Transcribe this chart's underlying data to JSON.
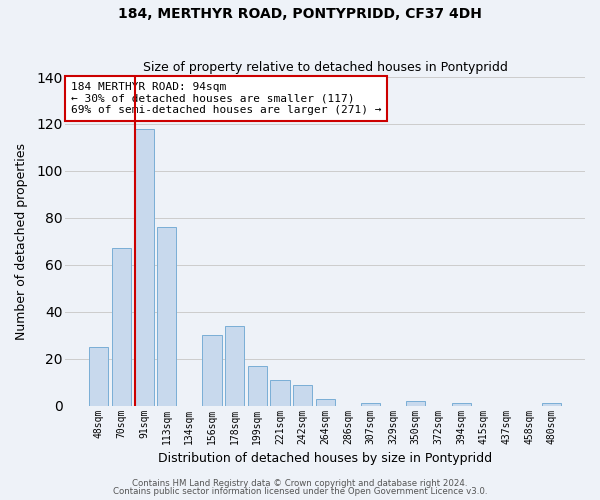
{
  "title1": "184, MERTHYR ROAD, PONTYPRIDD, CF37 4DH",
  "title2": "Size of property relative to detached houses in Pontypridd",
  "xlabel": "Distribution of detached houses by size in Pontypridd",
  "ylabel": "Number of detached properties",
  "bar_labels": [
    "48sqm",
    "70sqm",
    "91sqm",
    "113sqm",
    "134sqm",
    "156sqm",
    "178sqm",
    "199sqm",
    "221sqm",
    "242sqm",
    "264sqm",
    "286sqm",
    "307sqm",
    "329sqm",
    "350sqm",
    "372sqm",
    "394sqm",
    "415sqm",
    "437sqm",
    "458sqm",
    "480sqm"
  ],
  "bar_heights": [
    25,
    67,
    118,
    76,
    0,
    30,
    34,
    17,
    11,
    9,
    3,
    0,
    1,
    0,
    2,
    0,
    1,
    0,
    0,
    0,
    1
  ],
  "bar_color": "#c8d9ed",
  "bar_edge_color": "#7aaed6",
  "grid_color": "#cccccc",
  "background_color": "#eef2f8",
  "vline_color": "#cc0000",
  "annotation_line1": "184 MERTHYR ROAD: 94sqm",
  "annotation_line2": "← 30% of detached houses are smaller (117)",
  "annotation_line3": "69% of semi-detached houses are larger (271) →",
  "annotation_box_color": "#ffffff",
  "annotation_box_edge": "#cc0000",
  "ylim": [
    0,
    140
  ],
  "yticks": [
    0,
    20,
    40,
    60,
    80,
    100,
    120,
    140
  ],
  "footer1": "Contains HM Land Registry data © Crown copyright and database right 2024.",
  "footer2": "Contains public sector information licensed under the Open Government Licence v3.0."
}
